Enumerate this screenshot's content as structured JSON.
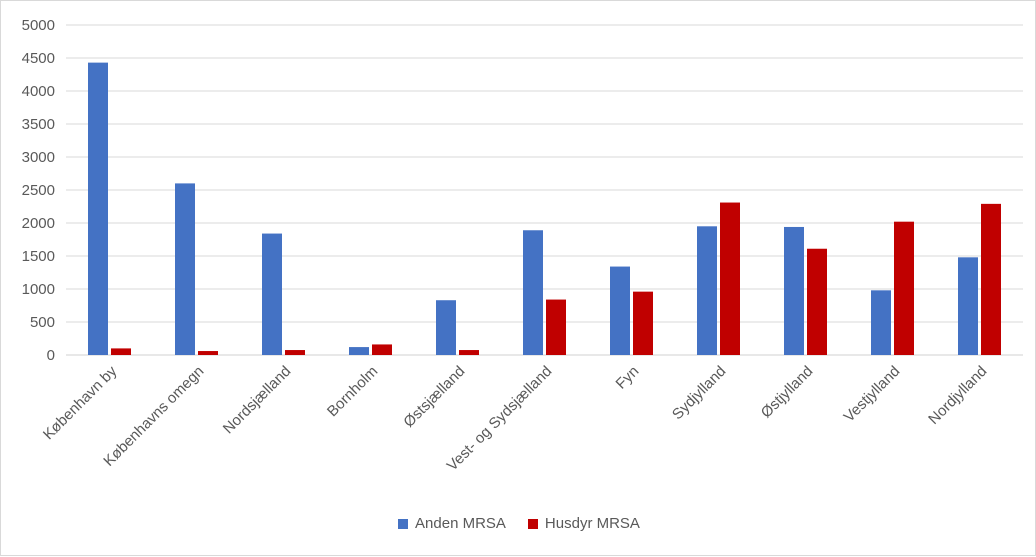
{
  "chart_data": {
    "type": "bar",
    "title": "",
    "xlabel": "",
    "ylabel": "",
    "ylim": [
      0,
      5000
    ],
    "yticks": [
      0,
      500,
      1000,
      1500,
      2000,
      2500,
      3000,
      3500,
      4000,
      4500,
      5000
    ],
    "grid": true,
    "legend_position": "bottom",
    "categories": [
      "København by",
      "Københavns omegn",
      "Nordsjælland",
      "Bornholm",
      "Østsjælland",
      "Vest- og Sydsjælland",
      "Fyn",
      "Sydjylland",
      "Østjylland",
      "Vestjylland",
      "Nordjylland"
    ],
    "series": [
      {
        "name": "Anden MRSA",
        "color": "#4472c4",
        "values": [
          4430,
          2600,
          1840,
          120,
          830,
          1890,
          1340,
          1950,
          1940,
          980,
          1480
        ]
      },
      {
        "name": "Husdyr MRSA",
        "color": "#c00000",
        "values": [
          100,
          60,
          75,
          160,
          75,
          840,
          960,
          2310,
          1610,
          2020,
          2290
        ]
      }
    ]
  }
}
